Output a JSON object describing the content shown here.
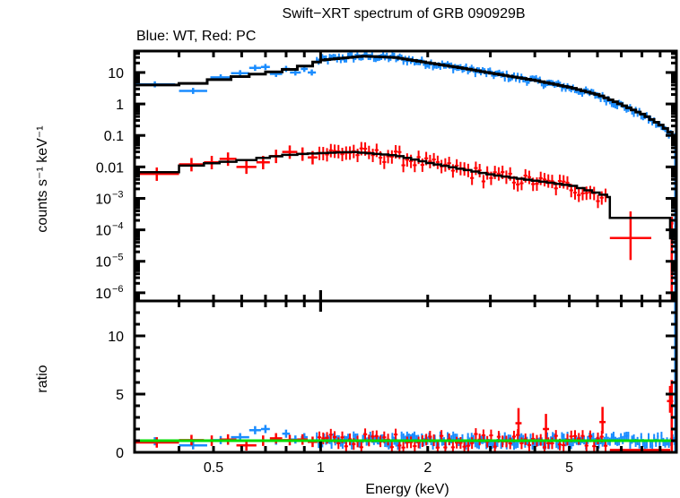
{
  "chart_data": {
    "type": "scatter",
    "title": "Swift−XRT spectrum of GRB 090929B",
    "subtitle": "Blue: WT, Red: PC",
    "xlabel": "Energy (keV)",
    "xscale": "log",
    "xlim": [
      0.3,
      10
    ],
    "x_ticks": [
      {
        "value": 0.5,
        "label": "0.5"
      },
      {
        "value": 1,
        "label": "1"
      },
      {
        "value": 2,
        "label": "2"
      },
      {
        "value": 5,
        "label": "5"
      }
    ],
    "panels": [
      {
        "name": "spectrum",
        "ylabel": "counts s⁻¹ keV⁻¹",
        "yscale": "log",
        "ylim": [
          5.5e-07,
          48
        ],
        "y_ticks": [
          {
            "value": 10,
            "label": "10"
          },
          {
            "value": 1,
            "label": "1"
          },
          {
            "value": 0.1,
            "label": "0.1"
          },
          {
            "value": 0.01,
            "label": "0.01"
          },
          {
            "value": 0.001,
            "label": "10",
            "exp": "−3"
          },
          {
            "value": 0.0001,
            "label": "10",
            "exp": "−4"
          },
          {
            "value": 1e-05,
            "label": "10",
            "exp": "−5"
          },
          {
            "value": 1e-06,
            "label": "10",
            "exp": "−6"
          }
        ],
        "series": [
          {
            "name": "WT data",
            "color": "#1a8cff",
            "kind": "crosses",
            "model_points": [
              [
                0.3,
                4.0
              ],
              [
                0.4,
                4.5
              ],
              [
                0.5,
                6.3
              ],
              [
                0.6,
                8.2
              ],
              [
                0.7,
                10.5
              ],
              [
                0.8,
                13
              ],
              [
                1.0,
                25
              ],
              [
                1.3,
                33
              ],
              [
                1.6,
                30
              ],
              [
                2.0,
                20
              ],
              [
                2.5,
                13.5
              ],
              [
                3.0,
                9.4
              ],
              [
                4.0,
                5.5
              ],
              [
                5.0,
                3.3
              ],
              [
                6.0,
                1.9
              ],
              [
                7.0,
                0.9
              ],
              [
                8.0,
                0.45
              ],
              [
                9.0,
                0.2
              ],
              [
                9.7,
                0.1
              ]
            ],
            "low_bins": [
              [
                0.3,
                0.39,
                4.2
              ],
              [
                0.4,
                0.48,
                2.6
              ],
              [
                0.49,
                0.56,
                7.0
              ],
              [
                0.56,
                0.63,
                9.5
              ],
              [
                0.63,
                0.68,
                14
              ],
              [
                0.68,
                0.72,
                15
              ],
              [
                0.72,
                0.78,
                9
              ],
              [
                0.78,
                0.82,
                13
              ],
              [
                0.82,
                0.88,
                10
              ],
              [
                0.88,
                0.92,
                13
              ],
              [
                0.92,
                0.97,
                10
              ]
            ]
          },
          {
            "name": "PC data",
            "color": "#ff0000",
            "kind": "crosses",
            "model_points": [
              [
                0.3,
                0.0068
              ],
              [
                0.4,
                0.011
              ],
              [
                0.6,
                0.017
              ],
              [
                0.8,
                0.025
              ],
              [
                1.2,
                0.03
              ],
              [
                1.6,
                0.023
              ],
              [
                2.0,
                0.013
              ],
              [
                3.0,
                0.0055
              ],
              [
                5.0,
                0.0025
              ],
              [
                6.4,
                0.0011
              ],
              [
                9.5,
                0.00024
              ],
              [
                9.7,
                5.4e-05
              ]
            ],
            "bins": [
              [
                0.3,
                0.4,
                0.006
              ],
              [
                0.4,
                0.47,
                0.012
              ],
              [
                0.47,
                0.52,
                0.014
              ],
              [
                0.52,
                0.58,
                0.018
              ],
              [
                0.58,
                0.66,
                0.01
              ],
              [
                0.66,
                0.72,
                0.014
              ],
              [
                0.72,
                0.78,
                0.022
              ],
              [
                0.78,
                0.86,
                0.03
              ],
              [
                0.86,
                0.92,
                0.026
              ],
              [
                0.92,
                0.98,
                0.02
              ],
              [
                6.5,
                8.5,
                5.5e-05
              ],
              [
                9.6,
                9.8,
                0.00016
              ]
            ]
          },
          {
            "name": "Model",
            "color": "#000000",
            "kind": "step"
          }
        ]
      },
      {
        "name": "ratio",
        "ylabel": "ratio",
        "yscale": "linear",
        "ylim": [
          0,
          13
        ],
        "y_ticks": [
          {
            "value": 0,
            "label": "0"
          },
          {
            "value": 5,
            "label": "5"
          },
          {
            "value": 10,
            "label": "10"
          }
        ],
        "reference_line": {
          "value": 1,
          "color": "#00dd00"
        },
        "series": [
          {
            "name": "WT ratio",
            "color": "#1a8cff",
            "mean": 1.0,
            "spread": 0.45
          },
          {
            "name": "PC ratio",
            "color": "#ff0000",
            "mean": 1.0,
            "spread": 0.6,
            "outliers": [
              [
                3.6,
                2.5
              ],
              [
                4.3,
                2.0
              ],
              [
                6.2,
                2.6
              ],
              [
                9.6,
                4.4
              ]
            ]
          }
        ]
      }
    ]
  }
}
